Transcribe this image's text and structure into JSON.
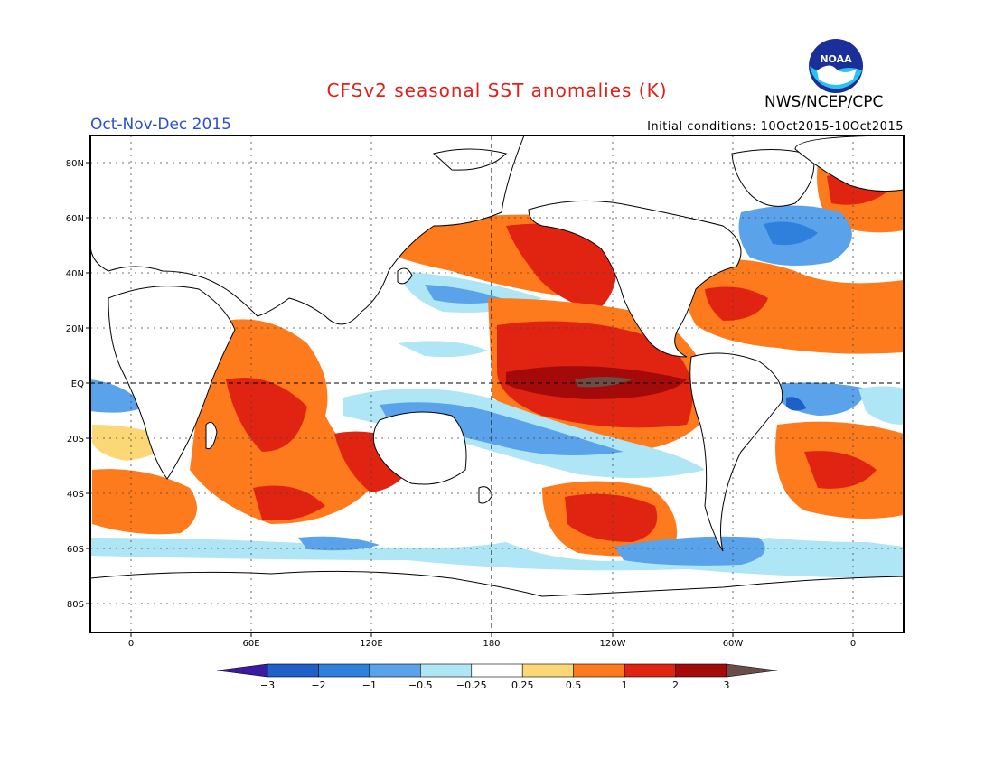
{
  "header": {
    "title": "CFSv2 seasonal SST anomalies (K)",
    "period": "Oct-Nov-Dec 2015",
    "agency": "NWS/NCEP/CPC",
    "logo_text": "NOAA",
    "initial_conditions": "Initial conditions: 10Oct2015-10Oct2015",
    "title_color": "#e0201a",
    "period_color": "#2a4fd0"
  },
  "map": {
    "lat_labels": [
      "80N",
      "60N",
      "40N",
      "20N",
      "EQ",
      "20S",
      "40S",
      "60S",
      "80S"
    ],
    "lon_labels": [
      "0",
      "60E",
      "120E",
      "180",
      "120W",
      "60W",
      "0"
    ]
  },
  "colorbar": {
    "tick_labels": [
      "−3",
      "−2",
      "−1",
      "−0.5",
      "−0.25",
      "0.25",
      "0.5",
      "1",
      "2",
      "3"
    ],
    "colors": [
      "#3b1ba0",
      "#1f5fc8",
      "#2f7fdc",
      "#5aa2ea",
      "#aee6f5",
      "#ffffff",
      "#fcd776",
      "#fd7b1c",
      "#e12411",
      "#a50a0a",
      "#6b4d45"
    ]
  }
}
